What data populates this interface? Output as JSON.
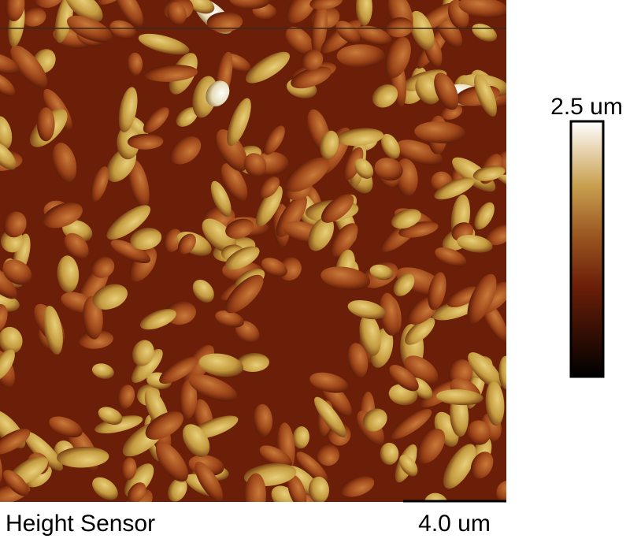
{
  "image": {
    "caption": "Height Sensor",
    "scale_bar": "4.0 um"
  },
  "color_scale": {
    "max_label": "2.5 um"
  }
}
